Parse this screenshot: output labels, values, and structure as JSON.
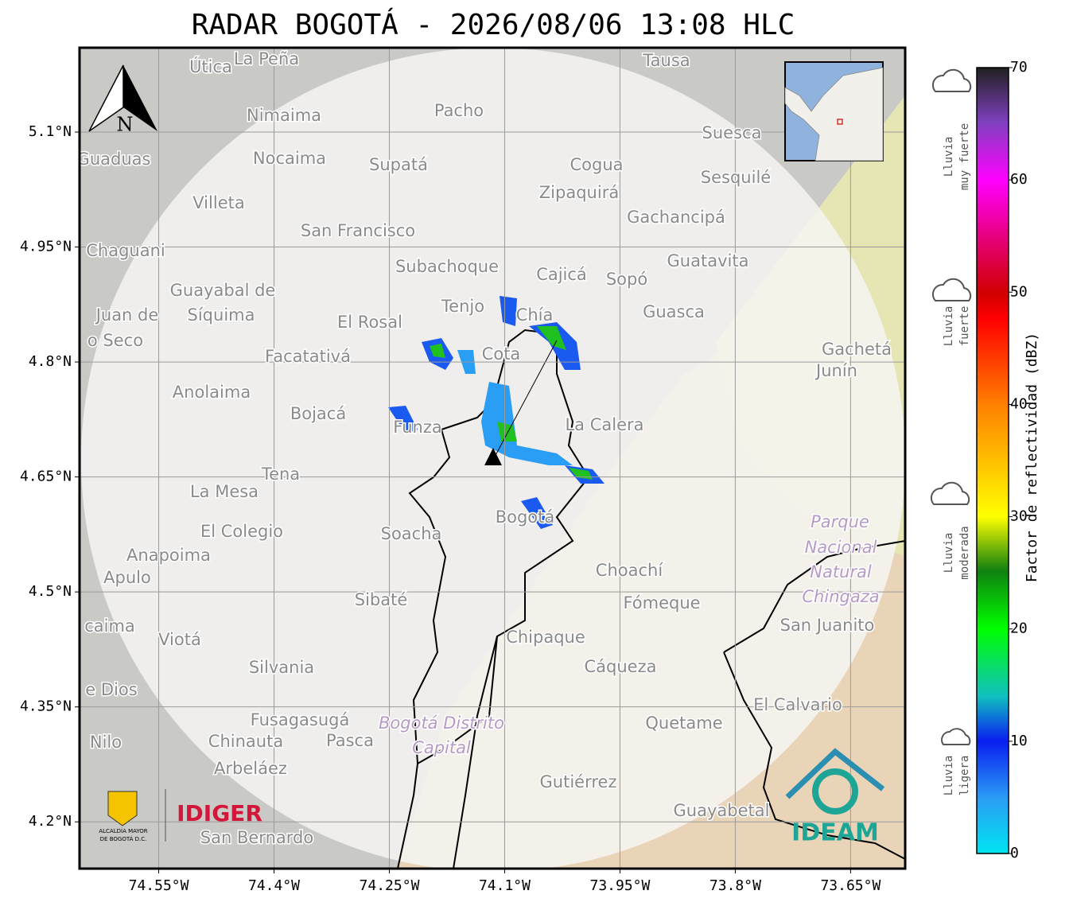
{
  "title": "RADAR BOGOTÁ - 2026/08/06 13:08 HLC",
  "map": {
    "lat_lim": [
      4.139,
      5.21
    ],
    "lon_lim": [
      -74.653,
      -73.579
    ],
    "lat_ticks": [
      {
        "value": 5.1,
        "label": "5.1°N"
      },
      {
        "value": 4.95,
        "label": "4.95°N"
      },
      {
        "value": 4.8,
        "label": "4.8°N"
      },
      {
        "value": 4.65,
        "label": "4.65°N"
      },
      {
        "value": 4.5,
        "label": "4.5°N"
      },
      {
        "value": 4.35,
        "label": "4.35°N"
      },
      {
        "value": 4.2,
        "label": "4.2°N"
      }
    ],
    "lon_ticks": [
      {
        "value": -74.55,
        "label": "74.55°W"
      },
      {
        "value": -74.4,
        "label": "74.4°W"
      },
      {
        "value": -74.25,
        "label": "74.25°W"
      },
      {
        "value": -74.1,
        "label": "74.1°W"
      },
      {
        "value": -73.95,
        "label": "73.95°W"
      },
      {
        "value": -73.8,
        "label": "73.8°W"
      },
      {
        "value": -73.65,
        "label": "73.65°W"
      }
    ],
    "north": "N",
    "places": [
      "Útica",
      "La Peña",
      "Tausa",
      "Pacho",
      "Nimaima",
      "Guaduas",
      "Nocaima",
      "Supatá",
      "Cogua",
      "Suesca",
      "Zipaquirá",
      "Sesquilé",
      "Villeta",
      "Gachancipá",
      "San Francisco",
      "Chaguani",
      "Guatavita",
      "Subachoque",
      "Cajicá",
      "Sopó",
      "Guayabal de",
      "Síquima",
      "Tenjo",
      "Chía",
      "Guasca",
      "Juan de",
      "El Rosal",
      "o Seco",
      "Facatativá",
      "Cota",
      "Gachetá",
      "Junín",
      "Anolaima",
      "Bojacá",
      "Funza",
      "La Calera",
      "Tena",
      "La Mesa",
      "Soacha",
      "Bogotá",
      "Parque",
      "Nacional",
      "Natural",
      "Chingaza",
      "El Colegio",
      "Anapoima",
      "Apulo",
      "Choachí",
      "Sibaté",
      "Fómeque",
      "San Juanito",
      "caima",
      "Viotá",
      "Chipaque",
      "Silvania",
      "Cáqueza",
      "e Dios",
      "El Calvario",
      "Fusagasugá",
      "Bogotá Distrito",
      "Capital",
      "Quetame",
      "Nilo",
      "Chinauta",
      "Pasca",
      "Arbeláez",
      "Gutiérrez",
      "Guayabetal",
      "San Bernardo"
    ]
  },
  "colorbar": {
    "label": "Factor de reflectividad (dBZ)",
    "lim": [
      0,
      70
    ],
    "ticks": [
      0,
      10,
      20,
      30,
      40,
      50,
      60,
      70
    ]
  },
  "rain_levels": [
    [
      "Lluvia",
      "muy fuerte"
    ],
    [
      "Lluvia",
      "fuerte"
    ],
    [
      "Lluvia",
      "moderada"
    ],
    [
      "Lluvia",
      "ligera"
    ]
  ],
  "logos": {
    "alcaldia": [
      "ALCALDÍA MAYOR",
      "DE BOGOTÁ D.C."
    ],
    "idiger": "IDIGER",
    "ideam": "IDEAM"
  }
}
